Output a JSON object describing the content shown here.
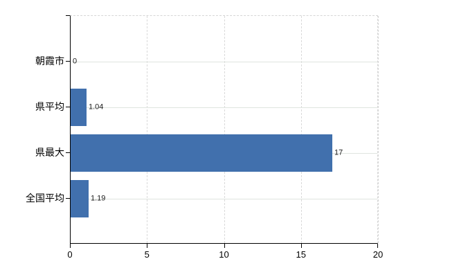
{
  "chart_data": {
    "type": "bar",
    "orientation": "horizontal",
    "title": "",
    "xlabel": "",
    "ylabel": "",
    "categories": [
      "朝霞市",
      "県平均",
      "県最大",
      "全国平均"
    ],
    "values": [
      0,
      1.04,
      17,
      1.19
    ],
    "value_labels": [
      "0",
      "1.04",
      "17",
      "1.19"
    ],
    "xlim": [
      0,
      20
    ],
    "x_ticks": [
      0,
      5,
      10,
      15,
      20
    ],
    "x_tick_labels": [
      "0",
      "5",
      "10",
      "15",
      "20"
    ],
    "grid": true,
    "legend": false,
    "colors": {
      "bar": "#4170ad",
      "solid_gridline": "#dfe4df",
      "dashed_gridline": "#d9d9d9",
      "axis": "#000000",
      "text": "#000000",
      "background": "#ffffff"
    }
  }
}
